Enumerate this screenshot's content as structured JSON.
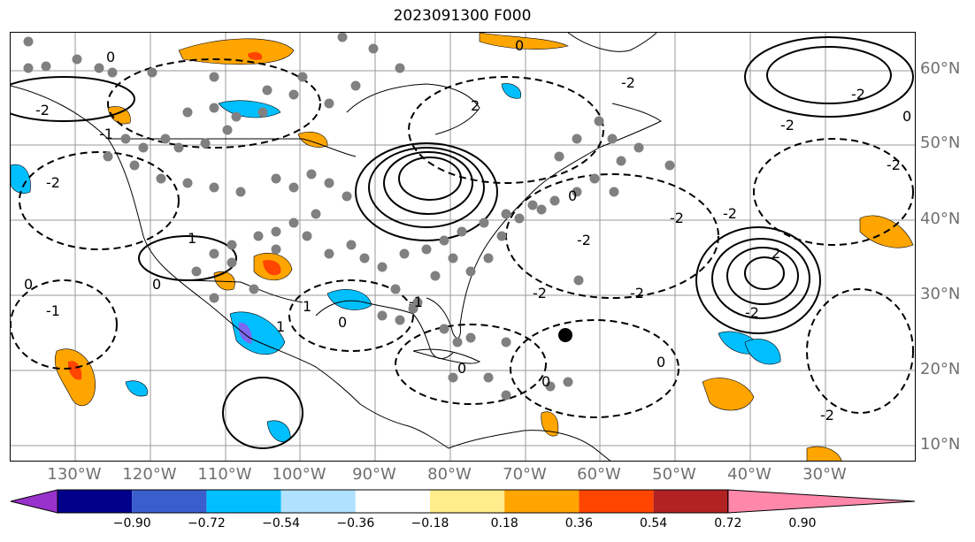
{
  "title": "2023091300 F000",
  "latitude_labels": [
    {
      "text": "60°N"
    },
    {
      "text": "50°N"
    },
    {
      "text": "40°N"
    },
    {
      "text": "30°N"
    },
    {
      "text": "20°N"
    },
    {
      "text": "10°N"
    }
  ],
  "longitude_labels": [
    {
      "text": "130°W"
    },
    {
      "text": "120°W"
    },
    {
      "text": "110°W"
    },
    {
      "text": "100°W"
    },
    {
      "text": "90°W"
    },
    {
      "text": "80°W"
    },
    {
      "text": "70°W"
    },
    {
      "text": "60°W"
    },
    {
      "text": "50°W"
    },
    {
      "text": "40°W"
    },
    {
      "text": "30°W"
    }
  ],
  "contour_labels": [
    "0",
    "-2",
    "2",
    "-2",
    "0",
    "-2",
    "0",
    "1",
    "0",
    "-2",
    "-1",
    "2",
    "-2",
    "0",
    "-2",
    "-2",
    "1",
    "0",
    "-2",
    "-2",
    "-2",
    "-2",
    "0",
    "-1",
    "0",
    "0",
    "-2",
    "-2",
    "1",
    "-1",
    "0"
  ],
  "colorbar": {
    "colors": [
      "#9932cc",
      "#00008b",
      "#3a5fcd",
      "#00bfff",
      "#b0e2ff",
      "#ffffff",
      "#ffec8b",
      "#ffa500",
      "#ff4500",
      "#b22222",
      "#ff88aa"
    ],
    "tick_labels": [
      "−0.90",
      "−0.72",
      "−0.54",
      "−0.36",
      "−0.18",
      "0.18",
      "0.36",
      "0.54",
      "0.72",
      "0.90"
    ]
  },
  "legend_colors": {
    "orange": "#ffa500",
    "red": "#ff4500",
    "light_blue": "#00bfff",
    "purple": "#7b68ee",
    "dot": "#808080"
  }
}
